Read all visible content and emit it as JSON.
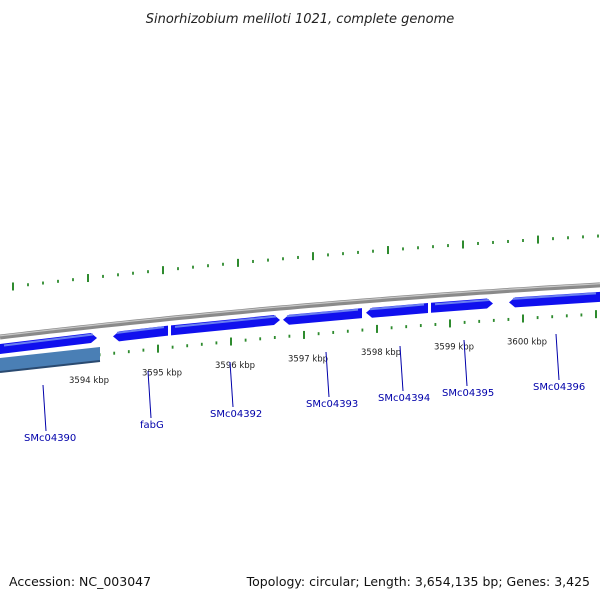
{
  "title": "Sinorhizobium meliloti 1021, complete genome",
  "footer": {
    "accession": "Accession: NC_003047",
    "summary": "Topology: circular; Length: 3,654,135 bp; Genes: 3,425"
  },
  "colors": {
    "backbone": "#8a8a8a",
    "gene_fill": "#1010ee",
    "gene_highlight": "#6a7ff0",
    "gene_selected": "#4a7fb5",
    "tick": "#2e8b2e",
    "label": "#0000aa"
  },
  "kbp_labels": [
    "3594 kbp",
    "3595 kbp",
    "3596 kbp",
    "3597 kbp",
    "3598 kbp",
    "3599 kbp",
    "3600 kbp"
  ],
  "genes": [
    {
      "label": "SMc04390",
      "strand": "forward",
      "selected": true
    },
    {
      "label": "fabG",
      "strand": "reverse"
    },
    {
      "label": "SMc04392",
      "strand": "forward"
    },
    {
      "label": "SMc04393",
      "strand": "reverse"
    },
    {
      "label": "SMc04394",
      "strand": "reverse"
    },
    {
      "label": "SMc04395",
      "strand": "forward"
    },
    {
      "label": "SMc04396",
      "strand": "reverse"
    }
  ]
}
